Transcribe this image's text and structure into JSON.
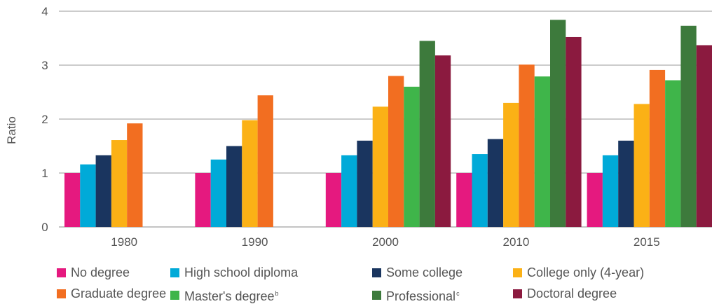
{
  "chart_data": {
    "type": "bar",
    "title": "",
    "xlabel": "",
    "ylabel": "Ratio",
    "ylim": [
      0,
      4
    ],
    "yticks": [
      "0",
      "1",
      "2",
      "3",
      "4"
    ],
    "grid": true,
    "legend_position": "bottom",
    "categories": [
      "1980",
      "1990",
      "2000",
      "2010",
      "2015"
    ],
    "series": [
      {
        "name": "No degree",
        "color": "#e5197f",
        "values": [
          1.0,
          1.0,
          1.0,
          1.0,
          1.0
        ]
      },
      {
        "name": "High school diploma",
        "color": "#00aad8",
        "values": [
          1.16,
          1.25,
          1.33,
          1.35,
          1.33
        ]
      },
      {
        "name": "Some college",
        "color": "#1a355f",
        "values": [
          1.33,
          1.5,
          1.6,
          1.63,
          1.6
        ]
      },
      {
        "name": "College only (4-year)",
        "color": "#fbb116",
        "values": [
          1.61,
          1.98,
          2.23,
          2.3,
          2.28
        ]
      },
      {
        "name": "Graduate degree",
        "color": "#f26e21",
        "values": [
          1.92,
          2.44,
          2.8,
          3.01,
          2.91
        ]
      },
      {
        "name": "Master's degree",
        "note": "b",
        "color": "#3fb54a",
        "values": [
          null,
          null,
          2.6,
          2.79,
          2.72
        ]
      },
      {
        "name": "Professional",
        "note": "c",
        "color": "#3d7a3c",
        "values": [
          null,
          null,
          3.45,
          3.84,
          3.73
        ]
      },
      {
        "name": "Doctoral degree",
        "color": "#8b1a3f",
        "values": [
          null,
          null,
          3.18,
          3.52,
          3.37
        ]
      }
    ]
  }
}
